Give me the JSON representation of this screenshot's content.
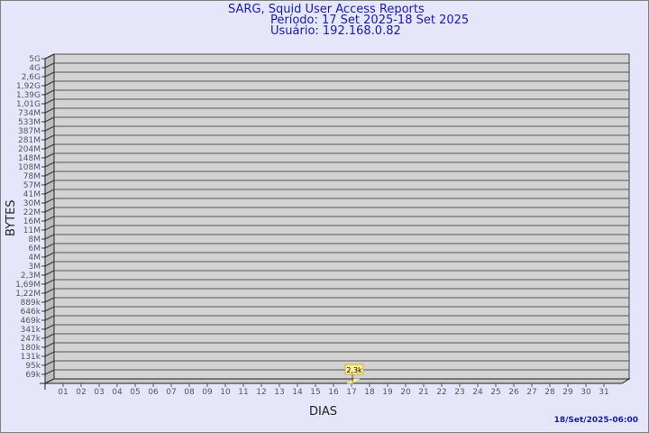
{
  "header": {
    "title": "SARG, Squid User Access Reports",
    "period": "Período: 17 Set 2025-18 Set 2025",
    "user": "Usuário: 192.168.0.82"
  },
  "footer": {
    "timestamp": "18/Set/2025-06:00"
  },
  "colors": {
    "background": "#e6e6fa",
    "plot": "#d3d3d3",
    "bar": "#ffee99",
    "title": "#1a1aa0"
  },
  "chart_data": {
    "type": "bar",
    "xlabel": "DIAS",
    "ylabel": "BYTES",
    "categories": [
      "01",
      "02",
      "03",
      "04",
      "05",
      "06",
      "07",
      "08",
      "09",
      "10",
      "11",
      "12",
      "13",
      "14",
      "15",
      "16",
      "17",
      "18",
      "19",
      "20",
      "21",
      "22",
      "23",
      "24",
      "25",
      "26",
      "27",
      "28",
      "29",
      "30",
      "31"
    ],
    "y_ticks": [
      "5G",
      "4G",
      "2,6G",
      "1,92G",
      "1,39G",
      "1,01G",
      "734M",
      "533M",
      "387M",
      "281M",
      "204M",
      "148M",
      "108M",
      "78M",
      "57M",
      "41M",
      "30M",
      "22M",
      "16M",
      "11M",
      "8M",
      "6M",
      "4M",
      "3M",
      "2,3M",
      "1,69M",
      "1,22M",
      "889k",
      "646k",
      "469k",
      "341k",
      "247k",
      "180k",
      "131k",
      "95k",
      "69k"
    ],
    "y_scale": "log",
    "grid": true,
    "series": [
      {
        "values": [
          null,
          null,
          null,
          null,
          null,
          null,
          null,
          null,
          null,
          null,
          null,
          null,
          null,
          null,
          null,
          null,
          2300,
          null,
          null,
          null,
          null,
          null,
          null,
          null,
          null,
          null,
          null,
          null,
          null,
          null,
          null
        ]
      }
    ],
    "data_labels": {
      "17": "2,3k"
    }
  }
}
